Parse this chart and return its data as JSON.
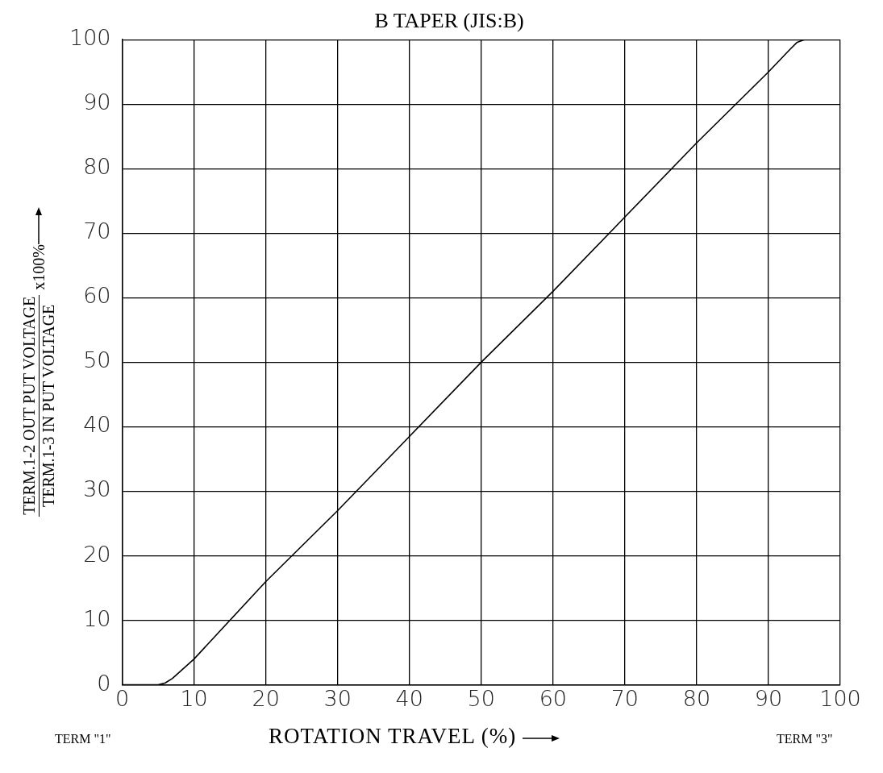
{
  "chart_data": {
    "type": "line",
    "title": "B TAPER (JIS:B)",
    "xlabel": "ROTATION TRAVEL (%)",
    "ylabel": "TERM.1-2 OUT PUT VOLTAGE\nTERM.1-3 IN PUT VOLTAGE\nx100%",
    "annotations": [
      "TERM \"1\"",
      "TERM \"3\""
    ],
    "x": [
      0,
      5,
      6,
      7,
      8,
      10,
      20,
      30,
      40,
      50,
      60,
      70,
      80,
      90,
      93,
      94,
      95,
      96
    ],
    "series": [
      {
        "color": "#000000",
        "values": [
          0,
          0,
          0.3,
          1,
          2,
          4,
          16,
          27,
          38.5,
          50,
          61,
          72.5,
          84,
          95,
          98.5,
          99.6,
          100,
          100
        ]
      }
    ],
    "xlim": [
      0,
      100
    ],
    "ylim": [
      0,
      100
    ],
    "xticks": [
      0,
      10,
      20,
      30,
      40,
      50,
      60,
      70,
      80,
      90,
      100
    ],
    "yticks": [
      0,
      10,
      20,
      30,
      40,
      50,
      60,
      70,
      80,
      90,
      100
    ],
    "grid": true,
    "legend": false,
    "marker": "none",
    "line_style": "solid"
  }
}
